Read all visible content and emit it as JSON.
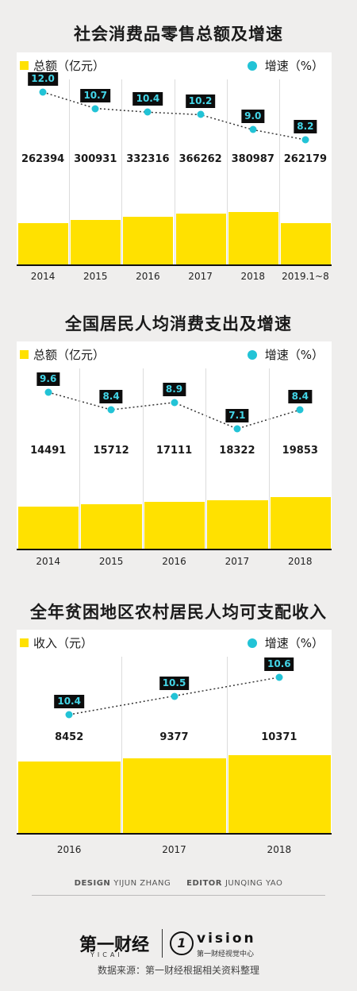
{
  "credits": {
    "design_label": "DESIGN",
    "design_name": "YIJUN ZHANG",
    "editor_label": "EDITOR",
    "editor_name": "JUNQING YAO"
  },
  "logos": {
    "left_main": "第一财经",
    "left_sub": "YICAI",
    "right_mark": "1",
    "right_main": "vision",
    "right_sub": "第一财经视觉中心"
  },
  "source": "数据来源：第一财经根据相关资料整理",
  "colors": {
    "bar": "#ffe100",
    "rate_dot": "#22c3d6",
    "rate_text": "#44d6e8",
    "label_bg": "#0d0d0d"
  },
  "chart_data": [
    {
      "type": "bar",
      "title": "社会消费品零售总额及增速",
      "bar_legend": "总额（亿元）",
      "line_legend": "增速（%）",
      "categories": [
        "2014",
        "2015",
        "2016",
        "2017",
        "2018",
        "2019.1~8"
      ],
      "series": [
        {
          "name": "总额（亿元）",
          "type": "bar",
          "values": [
            262394,
            300931,
            332316,
            366262,
            380987,
            262179
          ],
          "labels": [
            "262394",
            "300931",
            "332316",
            "366262",
            "380987",
            "262179"
          ]
        },
        {
          "name": "增速（%）",
          "type": "line",
          "values": [
            12.0,
            10.7,
            10.4,
            10.2,
            9.0,
            8.2
          ],
          "labels": [
            "12.0",
            "10.7",
            "10.4",
            "10.2",
            "9.0",
            "8.2"
          ]
        }
      ]
    },
    {
      "type": "bar",
      "title": "全国居民人均消费支出及增速",
      "bar_legend": "总额（亿元）",
      "line_legend": "增速（%）",
      "categories": [
        "2014",
        "2015",
        "2016",
        "2017",
        "2018"
      ],
      "series": [
        {
          "name": "总额（亿元）",
          "type": "bar",
          "values": [
            14491,
            15712,
            17111,
            18322,
            19853
          ],
          "labels": [
            "14491",
            "15712",
            "17111",
            "18322",
            "19853"
          ]
        },
        {
          "name": "增速（%）",
          "type": "line",
          "values": [
            9.6,
            8.4,
            8.9,
            7.1,
            8.4
          ],
          "labels": [
            "9.6",
            "8.4",
            "8.9",
            "7.1",
            "8.4"
          ]
        }
      ]
    },
    {
      "type": "bar",
      "title": "全年贫困地区农村居民人均可支配收入",
      "bar_legend": "收入（元）",
      "line_legend": "增速（%）",
      "categories": [
        "2016",
        "2017",
        "2018"
      ],
      "series": [
        {
          "name": "收入（元）",
          "type": "bar",
          "values": [
            8452,
            9377,
            10371
          ],
          "labels": [
            "8452",
            "9377",
            "10371"
          ]
        },
        {
          "name": "增速（%）",
          "type": "line",
          "values": [
            10.4,
            10.5,
            10.6
          ],
          "labels": [
            "10.4",
            "10.5",
            "10.6"
          ]
        }
      ]
    }
  ]
}
